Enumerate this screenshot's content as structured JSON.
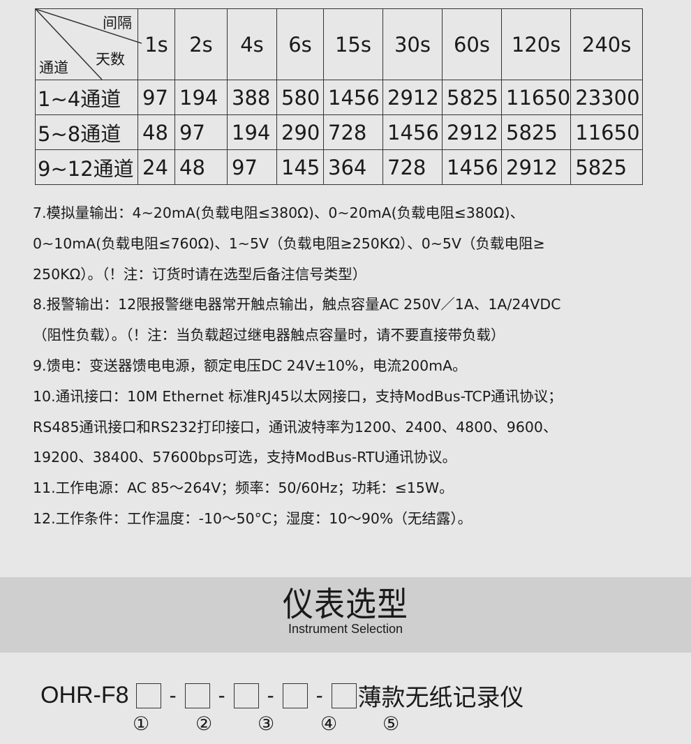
{
  "table": {
    "corner": {
      "top": "间隔",
      "middle": "天数",
      "bottom": "通道"
    },
    "intervals": [
      "1s",
      "2s",
      "4s",
      "6s",
      "15s",
      "30s",
      "60s",
      "120s",
      "240s"
    ],
    "rows": [
      {
        "label": "1~4通道",
        "values": [
          "97",
          "194",
          "388",
          "580",
          "1456",
          "2912",
          "5825",
          "11650",
          "23300"
        ]
      },
      {
        "label": "5~8通道",
        "values": [
          "48",
          "97",
          "194",
          "290",
          "728",
          "1456",
          "2912",
          "5825",
          "11650"
        ]
      },
      {
        "label": "9~12通道",
        "values": [
          "24",
          "48",
          "97",
          "145",
          "364",
          "728",
          "1456",
          "2912",
          "5825"
        ]
      }
    ]
  },
  "specs": [
    "7.模拟量输出：4~20mA(负载电阻≤380Ω)、0~20mA(负载电阻≤380Ω)、",
    "0~10mA(负载电阻≤760Ω)、1~5V（负载电阻≥250KΩ）、0~5V（负载电阻≥",
    "250KΩ）。（！注：订货时请在选型后备注信号类型）",
    "8.报警输出：12限报警继电器常开触点输出，触点容量AC 250V／1A、1A/24VDC",
    "（阻性负载）。（！注：当负载超过继电器触点容量时，请不要直接带负载）",
    "9.馈电：变送器馈电电源，额定电压DC 24V±10%，电流200mA。",
    "10.通讯接口：10M  Ethernet 标准RJ45以太网接口，支持ModBus-TCP通讯协议；",
    "RS485通讯接口和RS232打印接口，通讯波特率为1200、2400、4800、9600、",
    "19200、38400、57600bps可选，支持ModBus-RTU通讯协议。",
    "11.工作电源：AC 85～264V；频率：50/60Hz；功耗：≤15W。",
    "12.工作条件：工作温度：-10～50°C；湿度：10～90%（无结露）。"
  ],
  "section": {
    "title": "仪表选型",
    "subtitle": "Instrument Selection"
  },
  "model": {
    "prefix": "OHR-F8",
    "separator": "-",
    "suffix": "薄款无纸记录仪",
    "slots": [
      "①",
      "②",
      "③",
      "④",
      "⑤"
    ]
  }
}
